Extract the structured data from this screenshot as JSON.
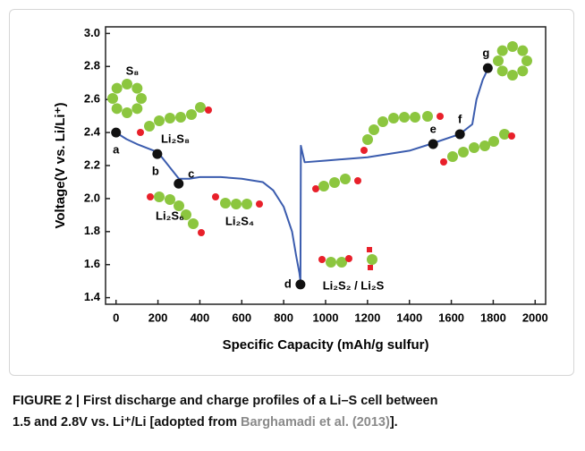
{
  "chart_data": {
    "type": "line",
    "xlabel": "Specific Capacity (mAh/g sulfur)",
    "ylabel": "Voltage(V vs. Li/Li⁺)",
    "xlim": [
      -50,
      2050
    ],
    "xticks": [
      0,
      200,
      400,
      600,
      800,
      1000,
      1200,
      1400,
      1600,
      1800,
      2000
    ],
    "ylim": [
      1.36,
      3.04
    ],
    "yticks": [
      1.4,
      1.6,
      1.8,
      {
        "value": 2,
        "label": "2.0"
      },
      2.2,
      2.4,
      2.6,
      2.8,
      {
        "value": 3,
        "label": "3.0"
      }
    ],
    "series": [
      {
        "color": "#3b5cae",
        "x": [
          0,
          50,
          100,
          200,
          250,
          300,
          350,
          400,
          500,
          600,
          700,
          750,
          800,
          840,
          860,
          875,
          880,
          882,
          900,
          1000,
          1200,
          1400,
          1500,
          1640,
          1700,
          1720,
          1750,
          1780
        ],
        "values": [
          2.4,
          2.36,
          2.33,
          2.28,
          2.2,
          2.12,
          2.12,
          2.13,
          2.13,
          2.12,
          2.1,
          2.05,
          1.95,
          1.8,
          1.65,
          1.55,
          1.5,
          2.32,
          2.22,
          2.23,
          2.25,
          2.29,
          2.33,
          2.39,
          2.45,
          2.6,
          2.72,
          2.8
        ]
      }
    ],
    "points": [
      {
        "label": "a",
        "x": 0,
        "y": 2.4
      },
      {
        "label": "b",
        "x": 197,
        "y": 2.27
      },
      {
        "label": "c",
        "x": 299,
        "y": 2.09
      },
      {
        "label": "d",
        "x": 880,
        "y": 1.48
      },
      {
        "label": "e",
        "x": 1513,
        "y": 2.33
      },
      {
        "label": "f",
        "x": 1641,
        "y": 2.39
      },
      {
        "label": "g",
        "x": 1774,
        "y": 2.79
      }
    ],
    "annotations": [
      "S₈",
      "Li₂S₈",
      "Li₂S₆",
      "Li₂S₄",
      "Li₂S₂ / Li₂S"
    ]
  },
  "caption": {
    "line1": "FIGURE 2 | First discharge and charge profiles of a Li–S cell between",
    "line2_before": "1.5 and 2.8V vs. Li⁺/Li [adopted from",
    "link": "Barghamadi et al. (2013)",
    "line2_after": "]."
  }
}
